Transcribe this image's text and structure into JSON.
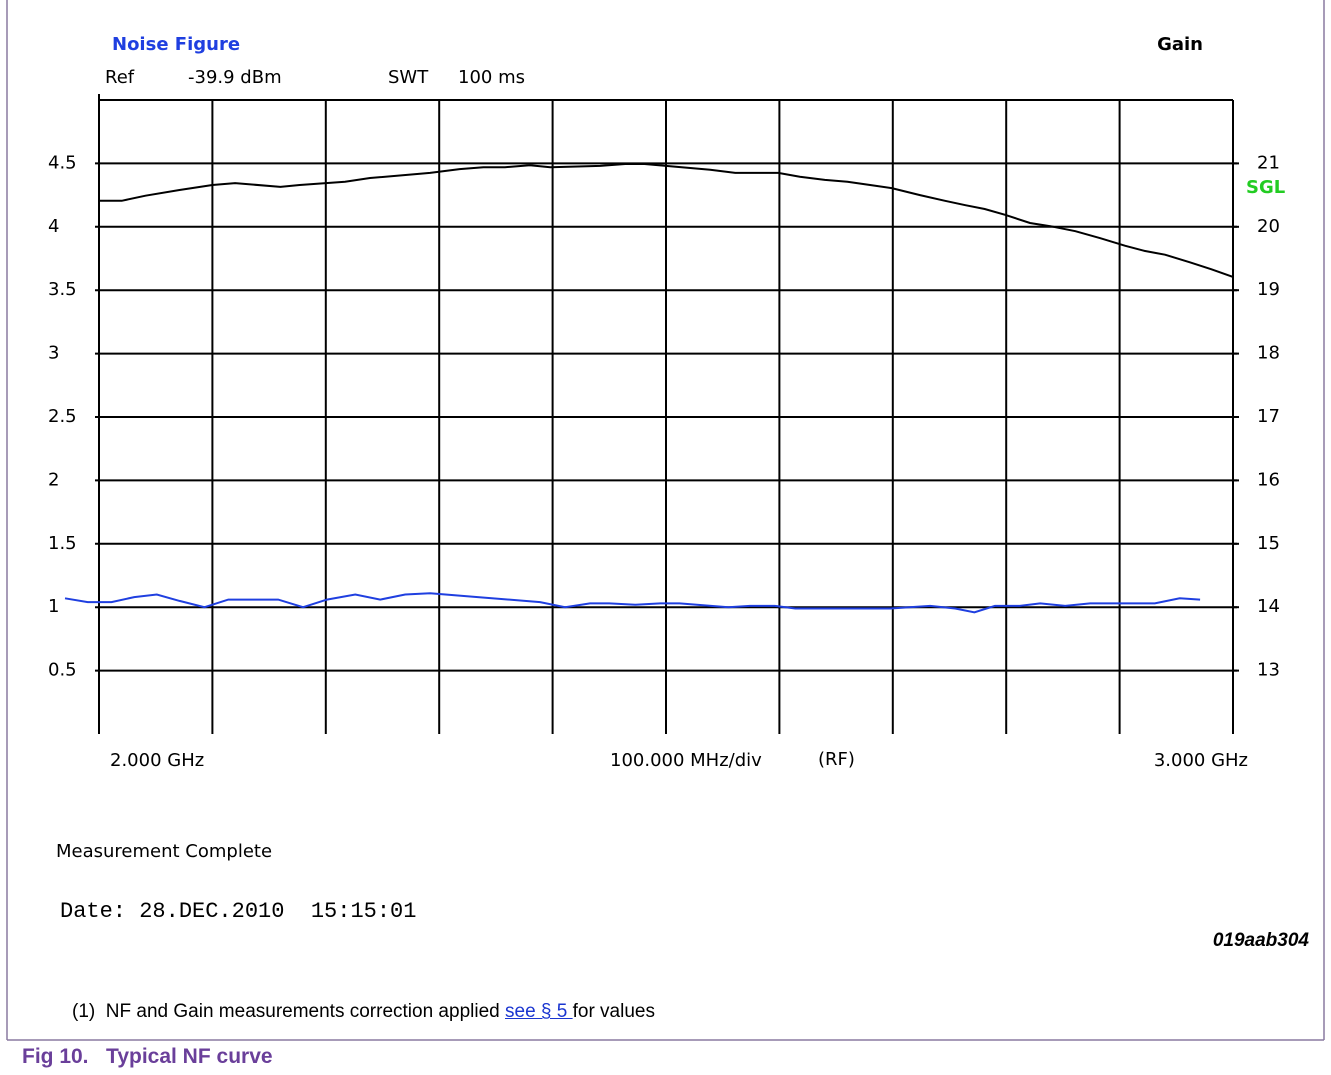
{
  "chart_data": {
    "type": "line",
    "left_title": "Noise Figure",
    "right_title": "Gain",
    "ref_label": "Ref",
    "ref_value": "-39.9 dBm",
    "swt_label": "SWT",
    "swt_value": "100 ms",
    "status": "SGL",
    "x_start_label": "2.000 GHz",
    "x_div_label": "100.000 MHz/div",
    "x_mode_label": "(RF)",
    "x_end_label": "3.000 GHz",
    "xlim": [
      2.0,
      3.0
    ],
    "xticks": [
      2.0,
      2.1,
      2.2,
      2.3,
      2.4,
      2.5,
      2.6,
      2.7,
      2.8,
      2.9,
      3.0
    ],
    "ylim": [
      0,
      5
    ],
    "yticks": [
      0.5,
      1,
      1.5,
      2,
      2.5,
      3,
      3.5,
      4,
      4.5
    ],
    "y2lim": [
      12,
      22
    ],
    "y2ticks": [
      13,
      14,
      15,
      16,
      17,
      18,
      19,
      20,
      21
    ],
    "grid": true,
    "series": [
      {
        "name": "Noise Figure",
        "color": "#1f3fe0",
        "axis": "y",
        "x": [
          1.97,
          1.99,
          2.011,
          2.031,
          2.051,
          2.071,
          2.093,
          2.114,
          2.158,
          2.18,
          2.201,
          2.226,
          2.248,
          2.27,
          2.292,
          2.334,
          2.389,
          2.411,
          2.433,
          2.45,
          2.473,
          2.495,
          2.512,
          2.555,
          2.574,
          2.596,
          2.614,
          2.631,
          2.658,
          2.68,
          2.698,
          2.733,
          2.755,
          2.772,
          2.79,
          2.812,
          2.83,
          2.852,
          2.874,
          2.909,
          2.931,
          2.953,
          2.971
        ],
        "values": [
          1.07,
          1.04,
          1.04,
          1.08,
          1.1,
          1.05,
          1.0,
          1.06,
          1.06,
          1.0,
          1.06,
          1.1,
          1.06,
          1.1,
          1.11,
          1.08,
          1.04,
          1.0,
          1.03,
          1.03,
          1.02,
          1.03,
          1.03,
          1.0,
          1.01,
          1.01,
          0.99,
          0.99,
          0.99,
          0.99,
          0.99,
          1.01,
          0.99,
          0.96,
          1.01,
          1.01,
          1.03,
          1.01,
          1.03,
          1.03,
          1.03,
          1.07,
          1.06
        ]
      },
      {
        "name": "Gain",
        "color": "#000000",
        "axis": "y2",
        "x": [
          2.0,
          2.02,
          2.041,
          2.071,
          2.1,
          2.12,
          2.16,
          2.177,
          2.217,
          2.239,
          2.292,
          2.318,
          2.339,
          2.358,
          2.38,
          2.398,
          2.442,
          2.464,
          2.481,
          2.5,
          2.539,
          2.561,
          2.599,
          2.618,
          2.64,
          2.66,
          2.68,
          2.699,
          2.724,
          2.746,
          2.764,
          2.781,
          2.799,
          2.821,
          2.839,
          2.861,
          2.883,
          2.905,
          2.922,
          2.94,
          2.962,
          2.981,
          3.0
        ],
        "values": [
          20.41,
          20.41,
          20.49,
          20.58,
          20.66,
          20.69,
          20.63,
          20.66,
          20.71,
          20.77,
          20.85,
          20.91,
          20.94,
          20.94,
          20.97,
          20.94,
          20.96,
          20.99,
          20.99,
          20.96,
          20.9,
          20.85,
          20.85,
          20.79,
          20.74,
          20.71,
          20.66,
          20.61,
          20.5,
          20.41,
          20.34,
          20.28,
          20.19,
          20.06,
          20.01,
          19.93,
          19.82,
          19.7,
          19.62,
          19.56,
          19.44,
          19.33,
          19.21
        ]
      }
    ]
  },
  "status_text": "Measurement Complete",
  "date_text": "Date: 28.DEC.2010  15:15:01",
  "figure_id": "019aab304",
  "footnote": {
    "number": "(1)",
    "text": "NF and Gain measurements correction applied ",
    "link": "see § 5 ",
    "after": "for values"
  },
  "caption": {
    "number": "Fig 10.",
    "title": "Typical NF curve"
  }
}
